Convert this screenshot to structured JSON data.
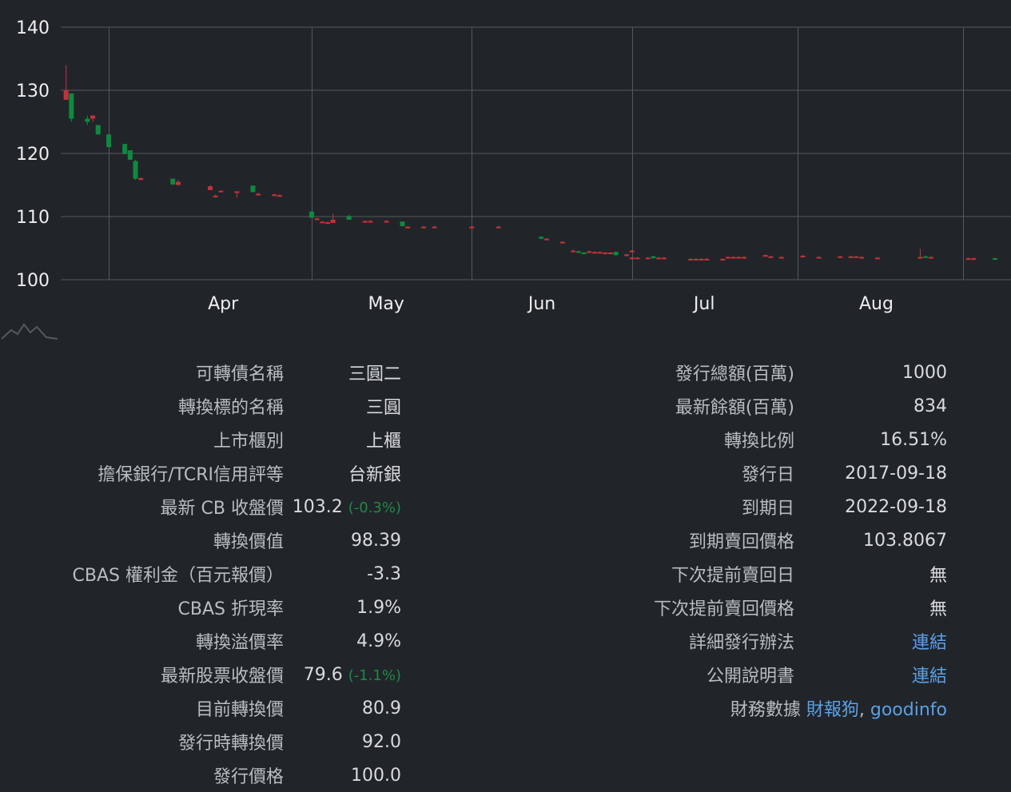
{
  "chart_data": {
    "type": "candlestick",
    "y_axis": {
      "ticks": [
        "100",
        "110",
        "120",
        "130",
        "140"
      ],
      "range": [
        100,
        140
      ]
    },
    "x_axis": {
      "ticks": [
        "Apr",
        "May",
        "Jun",
        "Jul",
        "Aug"
      ]
    },
    "grid": true,
    "colors": {
      "up": "#c8303a",
      "down": "#0e8a3f",
      "grid": "#55585c",
      "axis_text": "#eeeeee",
      "background": "#212529"
    },
    "candles": [
      {
        "date": "2022-03-17",
        "o": 128.5,
        "h": 134,
        "l": 128.5,
        "c": 130
      },
      {
        "date": "2022-03-18",
        "o": 129.5,
        "h": 129.5,
        "l": 125,
        "c": 125.5
      },
      {
        "date": "2022-03-21",
        "o": 125.5,
        "h": 126,
        "l": 124.5,
        "c": 125
      },
      {
        "date": "2022-03-22",
        "o": 125.5,
        "h": 126,
        "l": 125,
        "c": 126
      },
      {
        "date": "2022-03-23",
        "o": 124.5,
        "h": 124.5,
        "l": 123,
        "c": 123
      },
      {
        "date": "2022-03-25",
        "o": 123,
        "h": 123,
        "l": 121,
        "c": 121
      },
      {
        "date": "2022-03-28",
        "o": 121.5,
        "h": 121.5,
        "l": 119.8,
        "c": 120
      },
      {
        "date": "2022-03-29",
        "o": 120.5,
        "h": 120.5,
        "l": 119,
        "c": 119
      },
      {
        "date": "2022-03-30",
        "o": 118.8,
        "h": 119,
        "l": 115.8,
        "c": 116
      },
      {
        "date": "2022-03-31",
        "o": 115.8,
        "h": 116.2,
        "l": 115.8,
        "c": 116.1
      },
      {
        "date": "2022-04-06",
        "o": 116,
        "h": 116,
        "l": 115,
        "c": 115.1
      },
      {
        "date": "2022-04-07",
        "o": 115,
        "h": 115.8,
        "l": 115,
        "c": 115.5
      },
      {
        "date": "2022-04-13",
        "o": 114.2,
        "h": 115,
        "l": 114.2,
        "c": 114.8
      },
      {
        "date": "2022-04-14",
        "o": 113.2,
        "h": 113.5,
        "l": 113,
        "c": 113.3
      },
      {
        "date": "2022-04-15",
        "o": 114,
        "h": 114.1,
        "l": 113.9,
        "c": 114.1
      },
      {
        "date": "2022-04-18",
        "o": 114,
        "h": 114,
        "l": 113,
        "c": 114
      },
      {
        "date": "2022-04-21",
        "o": 114.9,
        "h": 114.9,
        "l": 113.8,
        "c": 113.9
      },
      {
        "date": "2022-04-22",
        "o": 113.5,
        "h": 113.8,
        "l": 113.4,
        "c": 113.6
      },
      {
        "date": "2022-04-25",
        "o": 113.4,
        "h": 113.6,
        "l": 113.3,
        "c": 113.5
      },
      {
        "date": "2022-04-26",
        "o": 113.3,
        "h": 113.5,
        "l": 113.3,
        "c": 113.4
      },
      {
        "date": "2022-05-02",
        "o": 110.8,
        "h": 110.8,
        "l": 109.8,
        "c": 109.8
      },
      {
        "date": "2022-05-03",
        "o": 109.6,
        "h": 109.8,
        "l": 109.5,
        "c": 109.7
      },
      {
        "date": "2022-05-04",
        "o": 109.2,
        "h": 109.3,
        "l": 109,
        "c": 109.2
      },
      {
        "date": "2022-05-05",
        "o": 109,
        "h": 109.2,
        "l": 109,
        "c": 109.1
      },
      {
        "date": "2022-05-06",
        "o": 109,
        "h": 110.5,
        "l": 109,
        "c": 109.5
      },
      {
        "date": "2022-05-09",
        "o": 110.1,
        "h": 110.3,
        "l": 109.5,
        "c": 109.5
      },
      {
        "date": "2022-05-12",
        "o": 109.3,
        "h": 109.4,
        "l": 109.2,
        "c": 109.3
      },
      {
        "date": "2022-05-13",
        "o": 109.3,
        "h": 109.4,
        "l": 109.2,
        "c": 109.3
      },
      {
        "date": "2022-05-16",
        "o": 109.3,
        "h": 109.4,
        "l": 109.2,
        "c": 109.3
      },
      {
        "date": "2022-05-19",
        "o": 109.2,
        "h": 109.2,
        "l": 108.4,
        "c": 108.5
      },
      {
        "date": "2022-05-20",
        "o": 108.4,
        "h": 108.5,
        "l": 108.3,
        "c": 108.4
      },
      {
        "date": "2022-05-23",
        "o": 108.4,
        "h": 108.5,
        "l": 108.3,
        "c": 108.4
      },
      {
        "date": "2022-05-25",
        "o": 108.4,
        "h": 108.5,
        "l": 108.3,
        "c": 108.4
      },
      {
        "date": "2022-06-01",
        "o": 108.4,
        "h": 108.5,
        "l": 108.3,
        "c": 108.4
      },
      {
        "date": "2022-06-06",
        "o": 108.4,
        "h": 108.5,
        "l": 108.3,
        "c": 108.4
      },
      {
        "date": "2022-06-14",
        "o": 106.8,
        "h": 106.9,
        "l": 106.4,
        "c": 106.5
      },
      {
        "date": "2022-06-15",
        "o": 106.5,
        "h": 106.6,
        "l": 106.4,
        "c": 106.5
      },
      {
        "date": "2022-06-18",
        "o": 106,
        "h": 106.1,
        "l": 105.9,
        "c": 106
      },
      {
        "date": "2022-06-20",
        "o": 104.6,
        "h": 104.8,
        "l": 104.4,
        "c": 104.6
      },
      {
        "date": "2022-06-21",
        "o": 104.5,
        "h": 104.6,
        "l": 104.3,
        "c": 104.3
      },
      {
        "date": "2022-06-22",
        "o": 104.3,
        "h": 104.4,
        "l": 104.1,
        "c": 104.2
      },
      {
        "date": "2022-06-23",
        "o": 104.5,
        "h": 104.6,
        "l": 104.4,
        "c": 104.5
      },
      {
        "date": "2022-06-24",
        "o": 104.4,
        "h": 104.5,
        "l": 104.3,
        "c": 104.4
      },
      {
        "date": "2022-06-25",
        "o": 104.4,
        "h": 104.5,
        "l": 104.3,
        "c": 104.4
      },
      {
        "date": "2022-06-26",
        "o": 104.3,
        "h": 104.4,
        "l": 104.2,
        "c": 104.3
      },
      {
        "date": "2022-06-27",
        "o": 104.3,
        "h": 104.4,
        "l": 104.2,
        "c": 104.3
      },
      {
        "date": "2022-06-28",
        "o": 104.4,
        "h": 104.5,
        "l": 103.8,
        "c": 103.9
      },
      {
        "date": "2022-06-30",
        "o": 104,
        "h": 104.1,
        "l": 103.9,
        "c": 104
      },
      {
        "date": "2022-07-01",
        "o": 104.6,
        "h": 104.7,
        "l": 104.5,
        "c": 104.6
      },
      {
        "date": "2022-07-01",
        "o": 103.5,
        "h": 103.6,
        "l": 103.4,
        "c": 103.5
      },
      {
        "date": "2022-07-02",
        "o": 103.5,
        "h": 103.6,
        "l": 103.4,
        "c": 103.5
      },
      {
        "date": "2022-07-04",
        "o": 103.5,
        "h": 103.6,
        "l": 103.4,
        "c": 103.5
      },
      {
        "date": "2022-07-05",
        "o": 103.7,
        "h": 103.8,
        "l": 103.3,
        "c": 103.4
      },
      {
        "date": "2022-07-06",
        "o": 103.5,
        "h": 103.6,
        "l": 103.4,
        "c": 103.5
      },
      {
        "date": "2022-07-07",
        "o": 103.5,
        "h": 103.6,
        "l": 103.4,
        "c": 103.5
      },
      {
        "date": "2022-07-12",
        "o": 103.3,
        "h": 103.4,
        "l": 103.2,
        "c": 103.3
      },
      {
        "date": "2022-07-13",
        "o": 103.3,
        "h": 103.4,
        "l": 103.2,
        "c": 103.3
      },
      {
        "date": "2022-07-14",
        "o": 103.3,
        "h": 103.4,
        "l": 103.2,
        "c": 103.3
      },
      {
        "date": "2022-07-15",
        "o": 103.3,
        "h": 103.4,
        "l": 103.2,
        "c": 103.3
      },
      {
        "date": "2022-07-18",
        "o": 103.3,
        "h": 103.4,
        "l": 103.2,
        "c": 103.3
      },
      {
        "date": "2022-07-19",
        "o": 103.6,
        "h": 103.7,
        "l": 103.5,
        "c": 103.6
      },
      {
        "date": "2022-07-20",
        "o": 103.6,
        "h": 103.7,
        "l": 103.5,
        "c": 103.6
      },
      {
        "date": "2022-07-21",
        "o": 103.6,
        "h": 103.7,
        "l": 103.5,
        "c": 103.6
      },
      {
        "date": "2022-07-22",
        "o": 103.6,
        "h": 103.7,
        "l": 103.5,
        "c": 103.6
      },
      {
        "date": "2022-07-26",
        "o": 103.9,
        "h": 104,
        "l": 103.8,
        "c": 103.9
      },
      {
        "date": "2022-07-27",
        "o": 103.7,
        "h": 103.8,
        "l": 103.6,
        "c": 103.7
      },
      {
        "date": "2022-07-29",
        "o": 103.6,
        "h": 103.7,
        "l": 103.5,
        "c": 103.6
      },
      {
        "date": "2022-08-02",
        "o": 103.8,
        "h": 103.9,
        "l": 103.7,
        "c": 103.8
      },
      {
        "date": "2022-08-05",
        "o": 103.6,
        "h": 103.7,
        "l": 103.5,
        "c": 103.6
      },
      {
        "date": "2022-08-09",
        "o": 103.7,
        "h": 103.8,
        "l": 103.6,
        "c": 103.7
      },
      {
        "date": "2022-08-11",
        "o": 103.7,
        "h": 103.8,
        "l": 103.6,
        "c": 103.7
      },
      {
        "date": "2022-08-12",
        "o": 103.7,
        "h": 103.8,
        "l": 103.6,
        "c": 103.7
      },
      {
        "date": "2022-08-13",
        "o": 103.6,
        "h": 103.7,
        "l": 103.5,
        "c": 103.6
      },
      {
        "date": "2022-08-16",
        "o": 103.5,
        "h": 103.6,
        "l": 103.4,
        "c": 103.5
      },
      {
        "date": "2022-08-24",
        "o": 103.6,
        "h": 104.9,
        "l": 103.5,
        "c": 103.6
      },
      {
        "date": "2022-08-25",
        "o": 103.7,
        "h": 103.8,
        "l": 103.5,
        "c": 103.5
      },
      {
        "date": "2022-08-26",
        "o": 103.6,
        "h": 103.7,
        "l": 103.5,
        "c": 103.6
      },
      {
        "date": "2022-09-02",
        "o": 103.4,
        "h": 103.5,
        "l": 103.3,
        "c": 103.4
      },
      {
        "date": "2022-09-03",
        "o": 103.4,
        "h": 103.5,
        "l": 103.3,
        "c": 103.4
      },
      {
        "date": "2022-09-07",
        "o": 103.4,
        "h": 103.5,
        "l": 103.2,
        "c": 103.2
      }
    ]
  },
  "left_info": [
    {
      "label": "可轉債名稱",
      "value": "三圓二"
    },
    {
      "label": "轉換標的名稱",
      "value": "三圓"
    },
    {
      "label": "上市櫃別",
      "value": "上櫃"
    },
    {
      "label": "擔保銀行/TCRI信用評等",
      "value": "台新銀"
    },
    {
      "label": "最新 CB 收盤價",
      "value": "103.2",
      "change": "(-0.3%)"
    },
    {
      "label": "轉換價值",
      "value": "98.39"
    },
    {
      "label": "CBAS 權利金（百元報價）",
      "value": "-3.3"
    },
    {
      "label": "CBAS 折現率",
      "value": "1.9%"
    },
    {
      "label": "轉換溢價率",
      "value": "4.9%"
    },
    {
      "label": "最新股票收盤價",
      "value": "79.6",
      "change": "(-1.1%)"
    },
    {
      "label": "目前轉換價",
      "value": "80.9"
    },
    {
      "label": "發行時轉換價",
      "value": "92.0"
    },
    {
      "label": "發行價格",
      "value": "100.0"
    }
  ],
  "right_info": [
    {
      "label": "發行總額(百萬)",
      "value": "1000"
    },
    {
      "label": "最新餘額(百萬)",
      "value": "834"
    },
    {
      "label": "轉換比例",
      "value": "16.51%"
    },
    {
      "label": "發行日",
      "value": "2017-09-18"
    },
    {
      "label": "到期日",
      "value": "2022-09-18"
    },
    {
      "label": "到期賣回價格",
      "value": "103.8067"
    },
    {
      "label": "下次提前賣回日",
      "value": "無"
    },
    {
      "label": "下次提前賣回價格",
      "value": "無"
    },
    {
      "label": "詳細發行辦法",
      "value": "連結",
      "link": true
    },
    {
      "label": "公開說明書",
      "value": "連結",
      "link": true
    }
  ],
  "sources": {
    "label": "財務數據",
    "link1": "財報狗",
    "separator": ",",
    "link2": "goodinfo"
  }
}
